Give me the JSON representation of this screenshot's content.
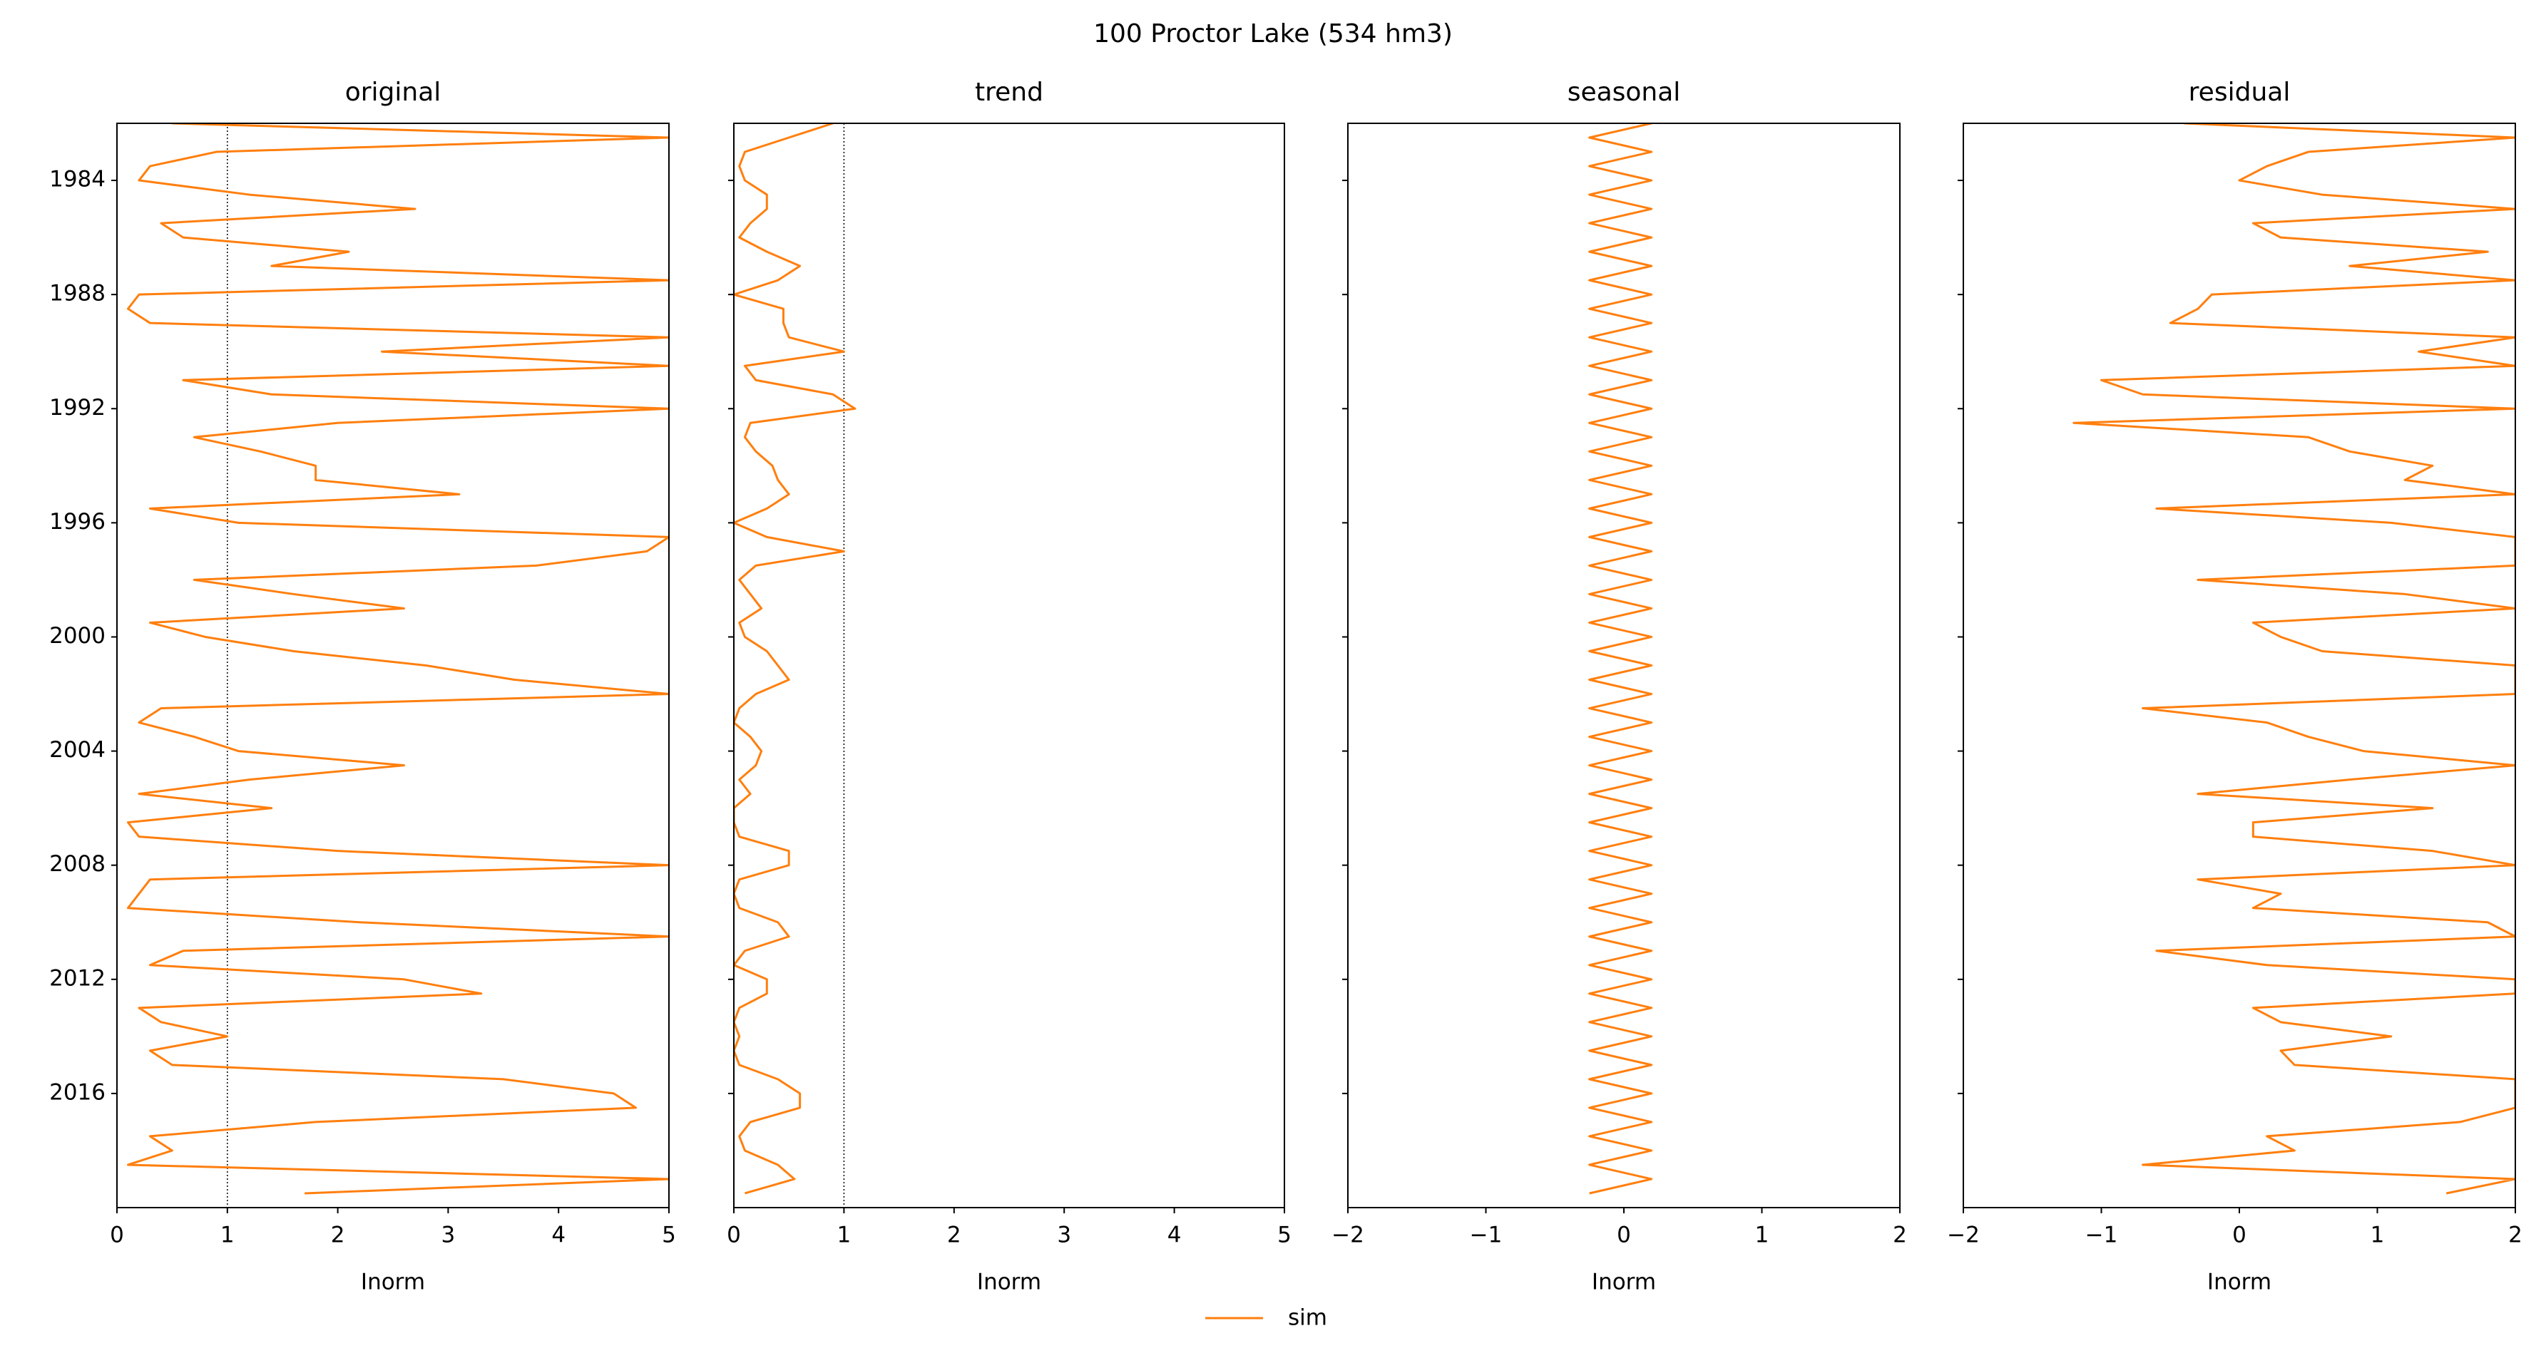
{
  "title": "100  Proctor Lake (534 hm3)",
  "chart_data": [
    {
      "type": "line",
      "title": "original",
      "xlabel": "Inorm",
      "xlim": [
        0,
        5
      ],
      "xticks": [
        0,
        1,
        2,
        3,
        4,
        5
      ],
      "ylim": [
        1982,
        2020
      ],
      "yticks": [
        1984,
        1988,
        1992,
        1996,
        2000,
        2004,
        2008,
        2012,
        2016
      ],
      "show_ytick_labels": true,
      "refline": 1,
      "y": [
        1982,
        1982.5,
        1983,
        1983.5,
        1984,
        1984.5,
        1985,
        1985.5,
        1986,
        1986.5,
        1987,
        1987.5,
        1988,
        1988.5,
        1989,
        1989.5,
        1990,
        1990.5,
        1991,
        1991.5,
        1992,
        1992.5,
        1993,
        1993.5,
        1994,
        1994.5,
        1995,
        1995.5,
        1996,
        1996.5,
        1997,
        1997.5,
        1998,
        1998.5,
        1999,
        1999.5,
        2000,
        2000.5,
        2001,
        2001.5,
        2002,
        2002.5,
        2003,
        2003.5,
        2004,
        2004.5,
        2005,
        2005.5,
        2006,
        2006.5,
        2007,
        2007.5,
        2008,
        2008.5,
        2009,
        2009.5,
        2010,
        2010.5,
        2011,
        2011.5,
        2012,
        2012.5,
        2013,
        2013.5,
        2014,
        2014.5,
        2015,
        2015.5,
        2016,
        2016.5,
        2017,
        2017.5,
        2018,
        2018.5,
        2019,
        2019.5
      ],
      "series": [
        {
          "name": "sim",
          "color": "#ff7f0e",
          "values": [
            0.5,
            5,
            0.9,
            0.3,
            0.2,
            1.2,
            2.7,
            0.4,
            0.6,
            2.1,
            1.4,
            5,
            0.2,
            0.1,
            0.3,
            5,
            2.4,
            5,
            0.6,
            1.4,
            5,
            2.0,
            0.7,
            1.3,
            1.8,
            1.8,
            3.1,
            0.3,
            1.1,
            5,
            4.8,
            3.8,
            0.7,
            1.6,
            2.6,
            0.3,
            0.8,
            1.6,
            2.8,
            3.6,
            5,
            0.4,
            0.2,
            0.7,
            1.1,
            2.6,
            1.2,
            0.2,
            1.4,
            0.1,
            0.2,
            2.0,
            5,
            0.3,
            0.2,
            0.1,
            2.2,
            5,
            0.6,
            0.3,
            2.6,
            3.3,
            0.2,
            0.4,
            1.0,
            0.3,
            0.5,
            3.5,
            4.5,
            4.7,
            1.8,
            0.3,
            0.5,
            0.1,
            5,
            1.7
          ]
        }
      ]
    },
    {
      "type": "line",
      "title": "trend",
      "xlabel": "Inorm",
      "xlim": [
        0,
        5
      ],
      "xticks": [
        0,
        1,
        2,
        3,
        4,
        5
      ],
      "ylim": [
        1982,
        2020
      ],
      "yticks": [
        1984,
        1988,
        1992,
        1996,
        2000,
        2004,
        2008,
        2012,
        2016
      ],
      "show_ytick_labels": false,
      "refline": 1,
      "y": [
        1982,
        1982.5,
        1983,
        1983.5,
        1984,
        1984.5,
        1985,
        1985.5,
        1986,
        1986.5,
        1987,
        1987.5,
        1988,
        1988.5,
        1989,
        1989.5,
        1990,
        1990.5,
        1991,
        1991.5,
        1992,
        1992.5,
        1993,
        1993.5,
        1994,
        1994.5,
        1995,
        1995.5,
        1996,
        1996.5,
        1997,
        1997.5,
        1998,
        1998.5,
        1999,
        1999.5,
        2000,
        2000.5,
        2001,
        2001.5,
        2002,
        2002.5,
        2003,
        2003.5,
        2004,
        2004.5,
        2005,
        2005.5,
        2006,
        2006.5,
        2007,
        2007.5,
        2008,
        2008.5,
        2009,
        2009.5,
        2010,
        2010.5,
        2011,
        2011.5,
        2012,
        2012.5,
        2013,
        2013.5,
        2014,
        2014.5,
        2015,
        2015.5,
        2016,
        2016.5,
        2017,
        2017.5,
        2018,
        2018.5,
        2019,
        2019.5
      ],
      "series": [
        {
          "name": "sim",
          "color": "#ff7f0e",
          "values": [
            0.9,
            0.5,
            0.1,
            0.05,
            0.1,
            0.3,
            0.3,
            0.15,
            0.05,
            0.3,
            0.6,
            0.4,
            0,
            0.45,
            0.45,
            0.5,
            1.0,
            0.1,
            0.2,
            0.9,
            1.1,
            0.15,
            0.1,
            0.2,
            0.35,
            0.4,
            0.5,
            0.3,
            0,
            0.3,
            1.0,
            0.2,
            0.05,
            0.15,
            0.25,
            0.05,
            0.1,
            0.3,
            0.4,
            0.5,
            0.2,
            0.05,
            0,
            0.15,
            0.25,
            0.2,
            0.05,
            0.15,
            0,
            0,
            0.05,
            0.5,
            0.5,
            0.05,
            0,
            0.05,
            0.4,
            0.5,
            0.1,
            0,
            0.3,
            0.3,
            0.05,
            0,
            0.05,
            0,
            0.05,
            0.4,
            0.6,
            0.6,
            0.15,
            0.05,
            0.1,
            0.4,
            0.55,
            0.1
          ]
        }
      ]
    },
    {
      "type": "line",
      "title": "seasonal",
      "xlabel": "Inorm",
      "xlim": [
        -2,
        2
      ],
      "xticks": [
        {
          "value": -2,
          "label": "−2"
        },
        {
          "value": -1,
          "label": "−1"
        },
        0,
        1,
        2
      ],
      "ylim": [
        1982,
        2020
      ],
      "yticks": [
        1984,
        1988,
        1992,
        1996,
        2000,
        2004,
        2008,
        2012,
        2016
      ],
      "show_ytick_labels": false,
      "y": [
        1982,
        1982.5,
        1983,
        1983.5,
        1984,
        1984.5,
        1985,
        1985.5,
        1986,
        1986.5,
        1987,
        1987.5,
        1988,
        1988.5,
        1989,
        1989.5,
        1990,
        1990.5,
        1991,
        1991.5,
        1992,
        1992.5,
        1993,
        1993.5,
        1994,
        1994.5,
        1995,
        1995.5,
        1996,
        1996.5,
        1997,
        1997.5,
        1998,
        1998.5,
        1999,
        1999.5,
        2000,
        2000.5,
        2001,
        2001.5,
        2002,
        2002.5,
        2003,
        2003.5,
        2004,
        2004.5,
        2005,
        2005.5,
        2006,
        2006.5,
        2007,
        2007.5,
        2008,
        2008.5,
        2009,
        2009.5,
        2010,
        2010.5,
        2011,
        2011.5,
        2012,
        2012.5,
        2013,
        2013.5,
        2014,
        2014.5,
        2015,
        2015.5,
        2016,
        2016.5,
        2017,
        2017.5,
        2018,
        2018.5,
        2019,
        2019.5
      ],
      "series": [
        {
          "name": "sim",
          "color": "#ff7f0e",
          "values": [
            0.2,
            -0.25,
            0.2,
            -0.25,
            0.2,
            -0.25,
            0.2,
            -0.25,
            0.2,
            -0.25,
            0.2,
            -0.25,
            0.2,
            -0.25,
            0.2,
            -0.25,
            0.2,
            -0.25,
            0.2,
            -0.25,
            0.2,
            -0.25,
            0.2,
            -0.25,
            0.2,
            -0.25,
            0.2,
            -0.25,
            0.2,
            -0.25,
            0.2,
            -0.25,
            0.2,
            -0.25,
            0.2,
            -0.25,
            0.2,
            -0.25,
            0.2,
            -0.25,
            0.2,
            -0.25,
            0.2,
            -0.25,
            0.2,
            -0.25,
            0.2,
            -0.25,
            0.2,
            -0.25,
            0.2,
            -0.25,
            0.2,
            -0.25,
            0.2,
            -0.25,
            0.2,
            -0.25,
            0.2,
            -0.25,
            0.2,
            -0.25,
            0.2,
            -0.25,
            0.2,
            -0.25,
            0.2,
            -0.25,
            0.2,
            -0.25,
            0.2,
            -0.25,
            0.2,
            -0.25,
            0.2,
            -0.25
          ]
        }
      ]
    },
    {
      "type": "line",
      "title": "residual",
      "xlabel": "Inorm",
      "xlim": [
        -2,
        2
      ],
      "xticks": [
        {
          "value": -2,
          "label": "−2"
        },
        {
          "value": -1,
          "label": "−1"
        },
        0,
        1,
        2
      ],
      "ylim": [
        1982,
        2020
      ],
      "yticks": [
        1984,
        1988,
        1992,
        1996,
        2000,
        2004,
        2008,
        2012,
        2016
      ],
      "show_ytick_labels": false,
      "y": [
        1982,
        1982.5,
        1983,
        1983.5,
        1984,
        1984.5,
        1985,
        1985.5,
        1986,
        1986.5,
        1987,
        1987.5,
        1988,
        1988.5,
        1989,
        1989.5,
        1990,
        1990.5,
        1991,
        1991.5,
        1992,
        1992.5,
        1993,
        1993.5,
        1994,
        1994.5,
        1995,
        1995.5,
        1996,
        1996.5,
        1997,
        1997.5,
        1998,
        1998.5,
        1999,
        1999.5,
        2000,
        2000.5,
        2001,
        2001.5,
        2002,
        2002.5,
        2003,
        2003.5,
        2004,
        2004.5,
        2005,
        2005.5,
        2006,
        2006.5,
        2007,
        2007.5,
        2008,
        2008.5,
        2009,
        2009.5,
        2010,
        2010.5,
        2011,
        2011.5,
        2012,
        2012.5,
        2013,
        2013.5,
        2014,
        2014.5,
        2015,
        2015.5,
        2016,
        2016.5,
        2017,
        2017.5,
        2018,
        2018.5,
        2019,
        2019.5
      ],
      "series": [
        {
          "name": "sim",
          "color": "#ff7f0e",
          "values": [
            -0.4,
            2,
            0.5,
            0.2,
            0,
            0.6,
            2,
            0.1,
            0.3,
            1.8,
            0.8,
            2,
            -0.2,
            -0.3,
            -0.5,
            2,
            1.3,
            2,
            -1.0,
            -0.7,
            2,
            -1.2,
            0.5,
            0.8,
            1.4,
            1.2,
            2,
            -0.6,
            1.1,
            2,
            2,
            2,
            -0.3,
            1.2,
            2,
            0.1,
            0.3,
            0.6,
            2,
            2,
            2,
            -0.7,
            0.2,
            0.5,
            0.9,
            2,
            0.8,
            -0.3,
            1.4,
            0.1,
            0.1,
            1.4,
            2,
            -0.3,
            0.3,
            0.1,
            1.8,
            2,
            -0.6,
            0.2,
            2,
            2,
            0.1,
            0.3,
            1.1,
            0.3,
            0.4,
            2,
            2,
            2,
            1.6,
            0.2,
            0.4,
            -0.7,
            2,
            1.5
          ]
        }
      ]
    }
  ]
}
